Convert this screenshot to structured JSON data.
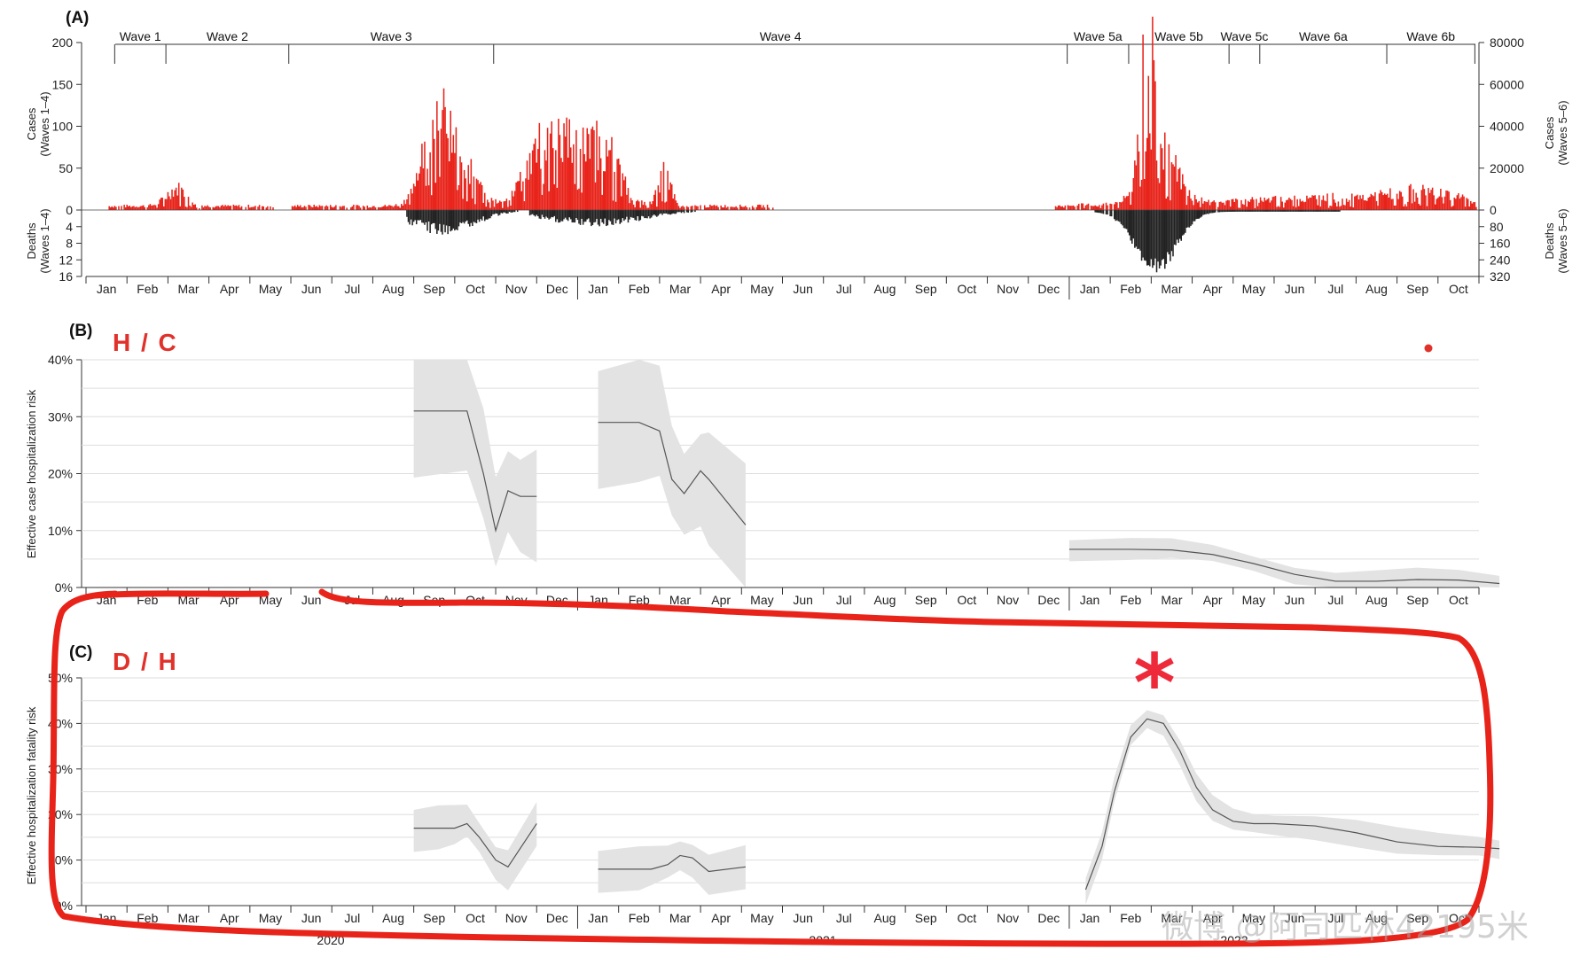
{
  "chart_data": [
    {
      "panel": "(A)",
      "type": "bar",
      "waves": [
        "Wave 1",
        "Wave 2",
        "Wave 3",
        "Wave 4",
        "Wave 5a",
        "Wave 5b",
        "Wave 5c",
        "Wave 6a",
        "Wave 6b"
      ],
      "ylabel_top": "Cases\n(Waves 1–4)",
      "ylabel_bottom": "Deaths\n(Waves 1–4)",
      "ylabel_top_right": "Cases\n(Waves 5–6)",
      "ylabel_bottom_right": "Deaths\n(Waves 5–6)",
      "yticks_top_left": [
        "0",
        "50",
        "100",
        "150",
        "200"
      ],
      "yticks_bottom_left": [
        "4",
        "8",
        "12",
        "16"
      ],
      "yticks_top_right": [
        "0",
        "20000",
        "40000",
        "60000",
        "80000"
      ],
      "yticks_bottom_right": [
        "80",
        "160",
        "240",
        "320"
      ],
      "series": [
        {
          "name": "Cases",
          "color": "#e8231a"
        },
        {
          "name": "Deaths",
          "color": "#222222"
        }
      ]
    },
    {
      "panel": "(B)",
      "type": "line",
      "annotation": "H / C",
      "ylabel": "Effective case hospitalization risk",
      "yticks": [
        "0%",
        "10%",
        "20%",
        "30%",
        "40%"
      ],
      "ylim": [
        0,
        40
      ],
      "series": [
        {
          "x": [
            8,
            9.3,
            9.7,
            10,
            10.3,
            10.6,
            11
          ],
          "y": [
            31,
            31,
            20,
            10,
            17,
            16,
            16
          ]
        },
        {
          "x": [
            12.5,
            13.5,
            14,
            14.3,
            14.6,
            15,
            15.2,
            16.1
          ],
          "y": [
            29,
            29,
            27.5,
            19,
            16.5,
            20.5,
            19,
            11
          ]
        },
        {
          "x": [
            24,
            25.5,
            26.5,
            27.5,
            28.5,
            29.5,
            30.5,
            31.5,
            32.5,
            33.5,
            34.5
          ],
          "y": [
            6.7,
            6.7,
            6.6,
            5.8,
            4.2,
            2.3,
            1.1,
            1.1,
            1.4,
            1.3,
            0.7
          ]
        }
      ]
    },
    {
      "panel": "(C)",
      "type": "line",
      "annotation": "D / H",
      "ylabel": "Effective hospitalization fatality risk",
      "yticks": [
        "0%",
        "10%",
        "20%",
        "30%",
        "40%",
        "50%"
      ],
      "ylim": [
        0,
        50
      ],
      "years": [
        "2020",
        "2021",
        "2022"
      ],
      "series": [
        {
          "x": [
            8,
            8.6,
            9,
            9.3,
            9.6,
            10,
            10.3,
            11
          ],
          "y": [
            17,
            17,
            17,
            18,
            15,
            10,
            8.5,
            18
          ]
        },
        {
          "x": [
            12.5,
            13.5,
            13.8,
            14.2,
            14.5,
            14.8,
            15.2,
            16.1
          ],
          "y": [
            8,
            8,
            8,
            9,
            11,
            10.5,
            7.5,
            8.5
          ]
        },
        {
          "x": [
            24.4,
            24.8,
            25.1,
            25.5,
            25.9,
            26.3,
            26.7,
            27.1,
            27.5,
            28,
            28.5,
            29,
            30,
            31,
            32,
            33,
            34,
            34.5
          ],
          "y": [
            3.5,
            13,
            25,
            37,
            41,
            40,
            34,
            26,
            21,
            18.5,
            18,
            18,
            17.5,
            16,
            14,
            13,
            12.8,
            12.5
          ]
        }
      ]
    }
  ],
  "months": [
    "Jan",
    "Feb",
    "Mar",
    "Apr",
    "May",
    "Jun",
    "Jul",
    "Aug",
    "Sep",
    "Oct",
    "Nov",
    "Dec",
    "Jan",
    "Feb",
    "Mar",
    "Apr",
    "May",
    "Jun",
    "Jul",
    "Aug",
    "Sep",
    "Oct",
    "Nov",
    "Dec",
    "Jan",
    "Feb",
    "Mar",
    "Apr",
    "May",
    "Jun",
    "Jul",
    "Aug",
    "Sep",
    "Oct"
  ],
  "colors": {
    "cases": "#e8231a",
    "deaths": "#222222",
    "ci": "#e3e3e3",
    "line": "#555555",
    "annot": "#e0322b",
    "scribble": "#e8231a"
  },
  "watermark": "微博 @阿司匹林42195米"
}
